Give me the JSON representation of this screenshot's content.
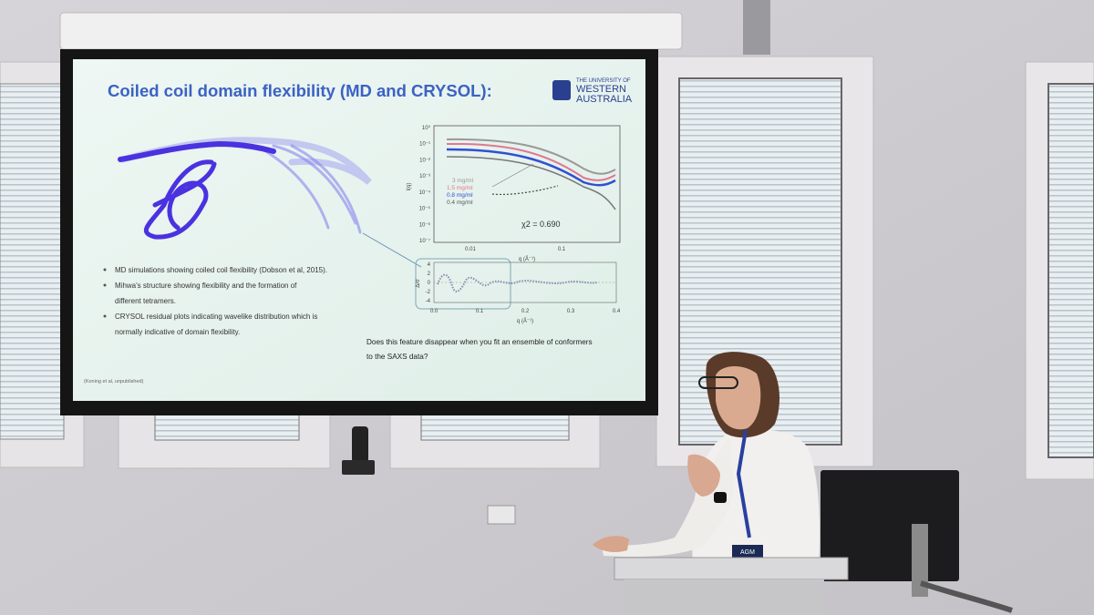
{
  "slide": {
    "title": "Coiled coil domain flexibility (MD and CRYSOL):",
    "logo": [
      "THE UNIVERSITY OF",
      "WESTERN",
      "AUSTRALIA"
    ],
    "bullets": [
      [
        "MD simulations showing coiled coil flexibility (Dobson et al, 2015)."
      ],
      [
        "Mihwa's structure showing flexibility and the formation of",
        "different tetramers."
      ],
      [
        "CRYSOL residual plots indicating wavelike distribution which is",
        "normally indicative of domain flexibility."
      ]
    ],
    "citation": "(Koning et al, unpublished)",
    "question": [
      "Does this feature disappear when you fit an ensemble of conformers",
      "to the SAXS data?"
    ],
    "saxs_plot": {
      "y_label": "I(q)",
      "x_label": "q (Å⁻¹)",
      "y_ticks": [
        "10⁰",
        "10⁻¹",
        "10⁻²",
        "10⁻³",
        "10⁻⁴",
        "10⁻⁵",
        "10⁻⁶",
        "10⁻⁷"
      ],
      "x_ticks": [
        "0.01",
        "0.1"
      ],
      "legend": [
        "3 mg/ml",
        "1.5 mg/ml",
        "0.8 mg/ml",
        "0.4 mg/ml"
      ],
      "chi": "χ2 = 0.690"
    },
    "residual_plot": {
      "y_label": "Δ/σ",
      "y_ticks": [
        "4",
        "2",
        "0",
        "-2",
        "-4"
      ],
      "x_ticks": [
        "0.0",
        "0.1",
        "0.2",
        "0.3",
        "0.4"
      ],
      "x_label": "q (Å⁻¹)"
    }
  },
  "badge": "AGM"
}
